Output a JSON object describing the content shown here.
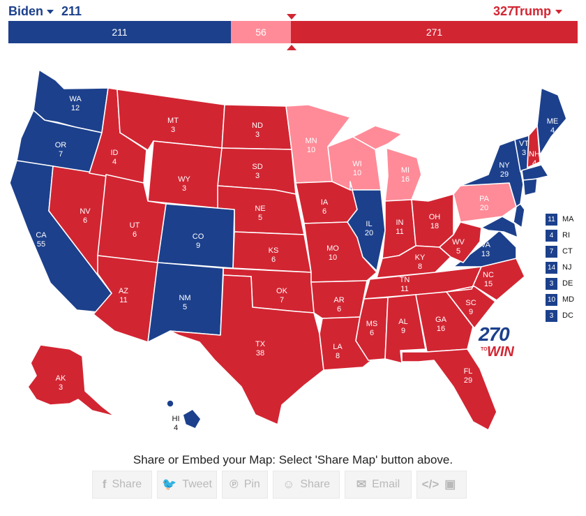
{
  "header": {
    "left_candidate": "Biden",
    "left_total": "211",
    "right_candidate": "Trump",
    "right_total": "327"
  },
  "bar": {
    "blue_label": "211",
    "pink_label": "56",
    "red_label": "271"
  },
  "colors": {
    "blue": "#1c408c",
    "red": "#d22532",
    "pink": "#ff8b98"
  },
  "states": {
    "WA": {
      "abbr": "WA",
      "ev": "12"
    },
    "OR": {
      "abbr": "OR",
      "ev": "7"
    },
    "CA": {
      "abbr": "CA",
      "ev": "55"
    },
    "NV": {
      "abbr": "NV",
      "ev": "6"
    },
    "ID": {
      "abbr": "ID",
      "ev": "4"
    },
    "MT": {
      "abbr": "MT",
      "ev": "3"
    },
    "WY": {
      "abbr": "WY",
      "ev": "3"
    },
    "UT": {
      "abbr": "UT",
      "ev": "6"
    },
    "AZ": {
      "abbr": "AZ",
      "ev": "11"
    },
    "CO": {
      "abbr": "CO",
      "ev": "9"
    },
    "NM": {
      "abbr": "NM",
      "ev": "5"
    },
    "ND": {
      "abbr": "ND",
      "ev": "3"
    },
    "SD": {
      "abbr": "SD",
      "ev": "3"
    },
    "NE": {
      "abbr": "NE",
      "ev": "5"
    },
    "KS": {
      "abbr": "KS",
      "ev": "6"
    },
    "OK": {
      "abbr": "OK",
      "ev": "7"
    },
    "TX": {
      "abbr": "TX",
      "ev": "38"
    },
    "MN": {
      "abbr": "MN",
      "ev": "10"
    },
    "IA": {
      "abbr": "IA",
      "ev": "6"
    },
    "MO": {
      "abbr": "MO",
      "ev": "10"
    },
    "AR": {
      "abbr": "AR",
      "ev": "6"
    },
    "LA": {
      "abbr": "LA",
      "ev": "8"
    },
    "WI": {
      "abbr": "WI",
      "ev": "10"
    },
    "IL": {
      "abbr": "IL",
      "ev": "20"
    },
    "MI": {
      "abbr": "MI",
      "ev": "16"
    },
    "IN": {
      "abbr": "IN",
      "ev": "11"
    },
    "OH": {
      "abbr": "OH",
      "ev": "18"
    },
    "KY": {
      "abbr": "KY",
      "ev": "8"
    },
    "TN": {
      "abbr": "TN",
      "ev": "11"
    },
    "MS": {
      "abbr": "MS",
      "ev": "6"
    },
    "AL": {
      "abbr": "AL",
      "ev": "9"
    },
    "GA": {
      "abbr": "GA",
      "ev": "16"
    },
    "FL": {
      "abbr": "FL",
      "ev": "29"
    },
    "SC": {
      "abbr": "SC",
      "ev": "9"
    },
    "NC": {
      "abbr": "NC",
      "ev": "15"
    },
    "VA": {
      "abbr": "VA",
      "ev": "13"
    },
    "WV": {
      "abbr": "WV",
      "ev": "5"
    },
    "PA": {
      "abbr": "PA",
      "ev": "20"
    },
    "NY": {
      "abbr": "NY",
      "ev": "29"
    },
    "VT": {
      "abbr": "VT",
      "ev": "3"
    },
    "NH": {
      "abbr": "NH",
      "ev": "4"
    },
    "ME": {
      "abbr": "ME",
      "ev": "4"
    },
    "AK": {
      "abbr": "AK",
      "ev": "3"
    },
    "HI": {
      "abbr": "HI",
      "ev": "4"
    }
  },
  "legend": [
    {
      "ev": "11",
      "abbr": "MA"
    },
    {
      "ev": "4",
      "abbr": "RI"
    },
    {
      "ev": "7",
      "abbr": "CT"
    },
    {
      "ev": "14",
      "abbr": "NJ"
    },
    {
      "ev": "3",
      "abbr": "DE"
    },
    {
      "ev": "10",
      "abbr": "MD"
    },
    {
      "ev": "3",
      "abbr": "DC"
    }
  ],
  "logo": {
    "num": "270",
    "to": "TO",
    "win": "WIN"
  },
  "share": {
    "instruction": "Share or Embed your Map: Select 'Share Map' button above.",
    "buttons": [
      {
        "icon": "f",
        "label": "Share"
      },
      {
        "icon": "t",
        "label": "Tweet"
      },
      {
        "icon": "p",
        "label": "Pin"
      },
      {
        "icon": "r",
        "label": "Share"
      },
      {
        "icon": "e",
        "label": "Email"
      },
      {
        "icon": "embed",
        "label": ""
      }
    ]
  }
}
